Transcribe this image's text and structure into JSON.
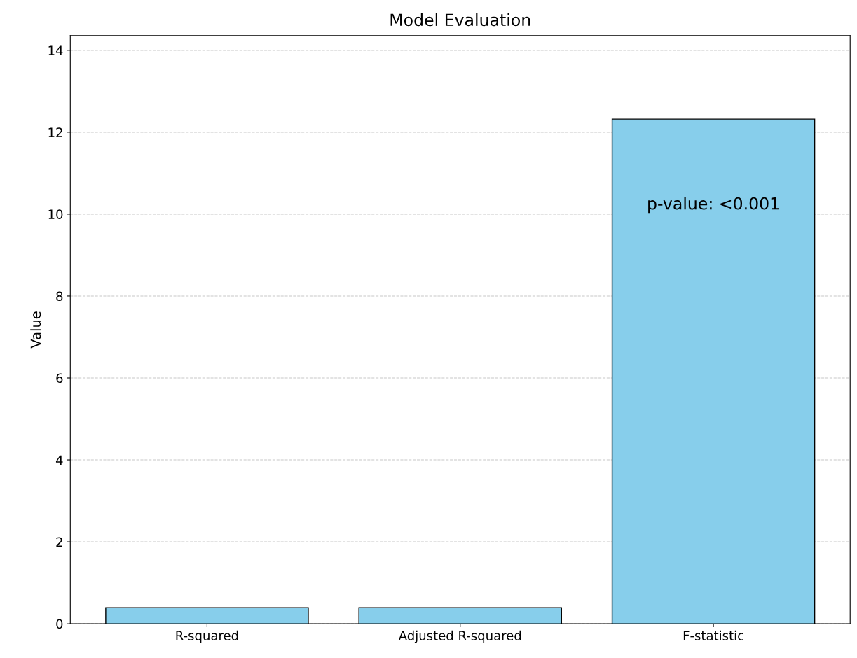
{
  "chart_data": {
    "type": "bar",
    "title": "Model Evaluation",
    "ylabel": "Value",
    "categories": [
      "R-squared",
      "Adjusted R-squared",
      "F-statistic"
    ],
    "values": [
      0.39,
      0.39,
      12.32
    ],
    "color": "#87ceeb",
    "ylim": [
      0,
      14.36
    ],
    "yticks": [
      0,
      2,
      4,
      6,
      8,
      10,
      12,
      14
    ],
    "grid": "y",
    "annotations": [
      "p-value: <0.001"
    ]
  }
}
